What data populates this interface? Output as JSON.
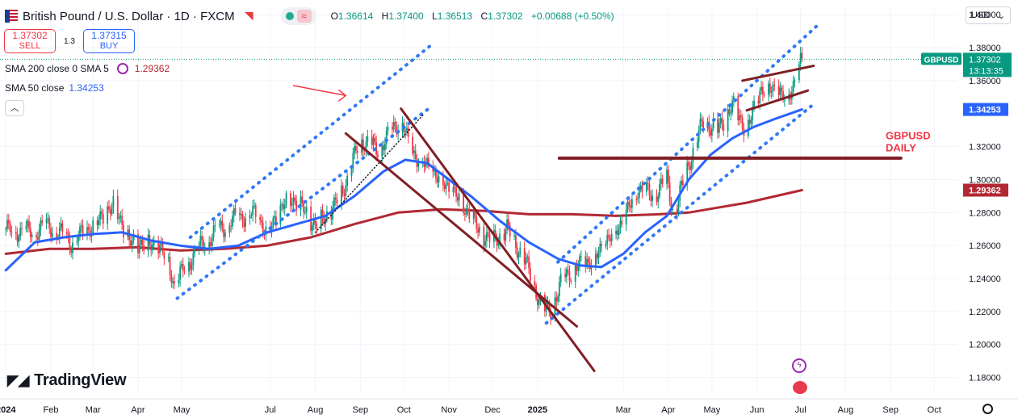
{
  "header": {
    "symbol_title": "British Pound / U.S. Dollar · 1D · FXCM",
    "ohlc": {
      "o_label": "O",
      "o": "1.36614",
      "h_label": "H",
      "h": "1.37400",
      "l_label": "L",
      "l": "1.36513",
      "c_label": "C",
      "c": "1.37302",
      "change": "+0.00688 (+0.50%)"
    }
  },
  "trade": {
    "sell_price": "1.37302",
    "sell_label": "SELL",
    "spread": "1.3",
    "buy_price": "1.37315",
    "buy_label": "BUY"
  },
  "indicators": [
    {
      "name": "SMA 200 close 0 SMA 5",
      "value": "1.29362",
      "color": "#b22833"
    },
    {
      "name": "SMA 50 close",
      "value": "1.34253",
      "color": "#2962ff"
    }
  ],
  "currency_selector": "USD",
  "logo_text": "TradingView",
  "icons": {
    "flag": "gbp-usd-flag-icon",
    "alarm": "alert-icon",
    "settings": "gear-icon",
    "collapse": "chevron-up-icon"
  },
  "chart_data": {
    "type": "candlestick",
    "symbol_label": "GBPUSD",
    "price_tag": "1.37302",
    "countdown": "13:13:35",
    "sma50_tag": "1.34253",
    "sma200_tag": "1.29362",
    "annotation": [
      "GBPUSD",
      "DAILY"
    ],
    "ylim": [
      1.17,
      1.405
    ],
    "y_ticks": [
      {
        "v": 1.4,
        "label": "1.40000"
      },
      {
        "v": 1.38,
        "label": "1.38000"
      },
      {
        "v": 1.36,
        "label": "1.36000"
      },
      {
        "v": 1.32,
        "label": "1.32000"
      },
      {
        "v": 1.3,
        "label": "1.30000"
      },
      {
        "v": 1.28,
        "label": "1.28000"
      },
      {
        "v": 1.26,
        "label": "1.26000"
      },
      {
        "v": 1.24,
        "label": "1.24000"
      },
      {
        "v": 1.22,
        "label": "1.22000"
      },
      {
        "v": 1.2,
        "label": "1.20000"
      },
      {
        "v": 1.18,
        "label": "1.18000"
      }
    ],
    "x_ticks": [
      {
        "d": 0,
        "label": "2024",
        "bold": true
      },
      {
        "d": 31,
        "label": "Feb"
      },
      {
        "d": 60,
        "label": "Mar"
      },
      {
        "d": 91,
        "label": "Apr"
      },
      {
        "d": 121,
        "label": "May"
      },
      {
        "d": 182,
        "label": "Jul"
      },
      {
        "d": 213,
        "label": "Aug"
      },
      {
        "d": 244,
        "label": "Sep"
      },
      {
        "d": 274,
        "label": "Oct"
      },
      {
        "d": 305,
        "label": "Nov"
      },
      {
        "d": 335,
        "label": "Dec"
      },
      {
        "d": 366,
        "label": "2025",
        "bold": true
      },
      {
        "d": 425,
        "label": "Mar"
      },
      {
        "d": 456,
        "label": "Apr"
      },
      {
        "d": 486,
        "label": "May"
      },
      {
        "d": 517,
        "label": "Jun"
      },
      {
        "d": 547,
        "label": "Jul"
      },
      {
        "d": 578,
        "label": "Aug"
      },
      {
        "d": 609,
        "label": "Sep"
      },
      {
        "d": 639,
        "label": "Oct"
      }
    ],
    "close_path": [
      [
        0,
        1.27
      ],
      [
        15,
        1.268
      ],
      [
        30,
        1.272
      ],
      [
        45,
        1.262
      ],
      [
        60,
        1.272
      ],
      [
        75,
        1.285
      ],
      [
        85,
        1.262
      ],
      [
        105,
        1.26
      ],
      [
        112,
        1.25
      ],
      [
        116,
        1.235
      ],
      [
        125,
        1.25
      ],
      [
        140,
        1.265
      ],
      [
        155,
        1.275
      ],
      [
        170,
        1.28
      ],
      [
        180,
        1.268
      ],
      [
        195,
        1.29
      ],
      [
        205,
        1.282
      ],
      [
        213,
        1.272
      ],
      [
        225,
        1.282
      ],
      [
        235,
        1.3
      ],
      [
        244,
        1.325
      ],
      [
        255,
        1.318
      ],
      [
        265,
        1.328
      ],
      [
        272,
        1.338
      ],
      [
        278,
        1.318
      ],
      [
        290,
        1.308
      ],
      [
        305,
        1.295
      ],
      [
        315,
        1.285
      ],
      [
        325,
        1.27
      ],
      [
        335,
        1.262
      ],
      [
        345,
        1.27
      ],
      [
        355,
        1.255
      ],
      [
        362,
        1.24
      ],
      [
        370,
        1.22
      ],
      [
        375,
        1.222
      ],
      [
        385,
        1.242
      ],
      [
        395,
        1.248
      ],
      [
        405,
        1.252
      ],
      [
        418,
        1.268
      ],
      [
        425,
        1.275
      ],
      [
        435,
        1.295
      ],
      [
        445,
        1.29
      ],
      [
        455,
        1.3
      ],
      [
        460,
        1.278
      ],
      [
        470,
        1.31
      ],
      [
        480,
        1.335
      ],
      [
        490,
        1.33
      ],
      [
        500,
        1.345
      ],
      [
        510,
        1.33
      ],
      [
        520,
        1.355
      ],
      [
        530,
        1.355
      ],
      [
        537,
        1.348
      ],
      [
        543,
        1.36
      ],
      [
        548,
        1.373
      ]
    ],
    "sma50": [
      [
        0,
        1.245
      ],
      [
        20,
        1.262
      ],
      [
        40,
        1.265
      ],
      [
        60,
        1.267
      ],
      [
        80,
        1.268
      ],
      [
        100,
        1.263
      ],
      [
        120,
        1.26
      ],
      [
        140,
        1.258
      ],
      [
        160,
        1.26
      ],
      [
        180,
        1.268
      ],
      [
        200,
        1.273
      ],
      [
        220,
        1.278
      ],
      [
        240,
        1.29
      ],
      [
        260,
        1.305
      ],
      [
        275,
        1.312
      ],
      [
        290,
        1.31
      ],
      [
        305,
        1.3
      ],
      [
        320,
        1.29
      ],
      [
        340,
        1.275
      ],
      [
        360,
        1.262
      ],
      [
        380,
        1.252
      ],
      [
        395,
        1.248
      ],
      [
        410,
        1.247
      ],
      [
        425,
        1.255
      ],
      [
        440,
        1.268
      ],
      [
        455,
        1.278
      ],
      [
        470,
        1.3
      ],
      [
        485,
        1.315
      ],
      [
        500,
        1.325
      ],
      [
        515,
        1.332
      ],
      [
        530,
        1.337
      ],
      [
        548,
        1.34253
      ]
    ],
    "sma200": [
      [
        0,
        1.255
      ],
      [
        30,
        1.258
      ],
      [
        60,
        1.258
      ],
      [
        90,
        1.259
      ],
      [
        120,
        1.257
      ],
      [
        150,
        1.258
      ],
      [
        180,
        1.26
      ],
      [
        210,
        1.265
      ],
      [
        240,
        1.273
      ],
      [
        270,
        1.28
      ],
      [
        300,
        1.282
      ],
      [
        330,
        1.281
      ],
      [
        360,
        1.279
      ],
      [
        390,
        1.279
      ],
      [
        420,
        1.278
      ],
      [
        450,
        1.279
      ],
      [
        470,
        1.28
      ],
      [
        490,
        1.283
      ],
      [
        510,
        1.286
      ],
      [
        530,
        1.29
      ],
      [
        548,
        1.29362
      ]
    ],
    "drawings": {
      "blue_channel_1": [
        [
          [
            118,
            1.228
          ],
          [
            291,
            1.343
          ]
        ],
        [
          [
            127,
            1.265
          ],
          [
            292,
            1.381
          ]
        ]
      ],
      "blue_channel_2": [
        [
          [
            372,
            1.213
          ],
          [
            555,
            1.345
          ]
        ],
        [
          [
            380,
            1.25
          ],
          [
            558,
            1.393
          ]
        ]
      ],
      "black_dotted": [
        [
          [
            213,
            1.268
          ],
          [
            288,
            1.34
          ]
        ]
      ],
      "red_channel": [
        [
          [
            234,
            1.328
          ],
          [
            393,
            1.211
          ]
        ],
        [
          [
            272,
            1.343
          ],
          [
            405,
            1.184
          ]
        ]
      ],
      "support_line": [
        [
          [
            381,
            1.313
          ],
          [
            616,
            1.313
          ]
        ]
      ],
      "flag_top": [
        [
          [
            507,
            1.36
          ],
          [
            556,
            1.369
          ]
        ]
      ],
      "flag_bottom": [
        [
          [
            510,
            1.342
          ],
          [
            552,
            1.354
          ]
        ]
      ],
      "arrow": [
        [
          [
            198,
            1.357
          ],
          [
            234,
            1.351
          ]
        ]
      ]
    }
  }
}
